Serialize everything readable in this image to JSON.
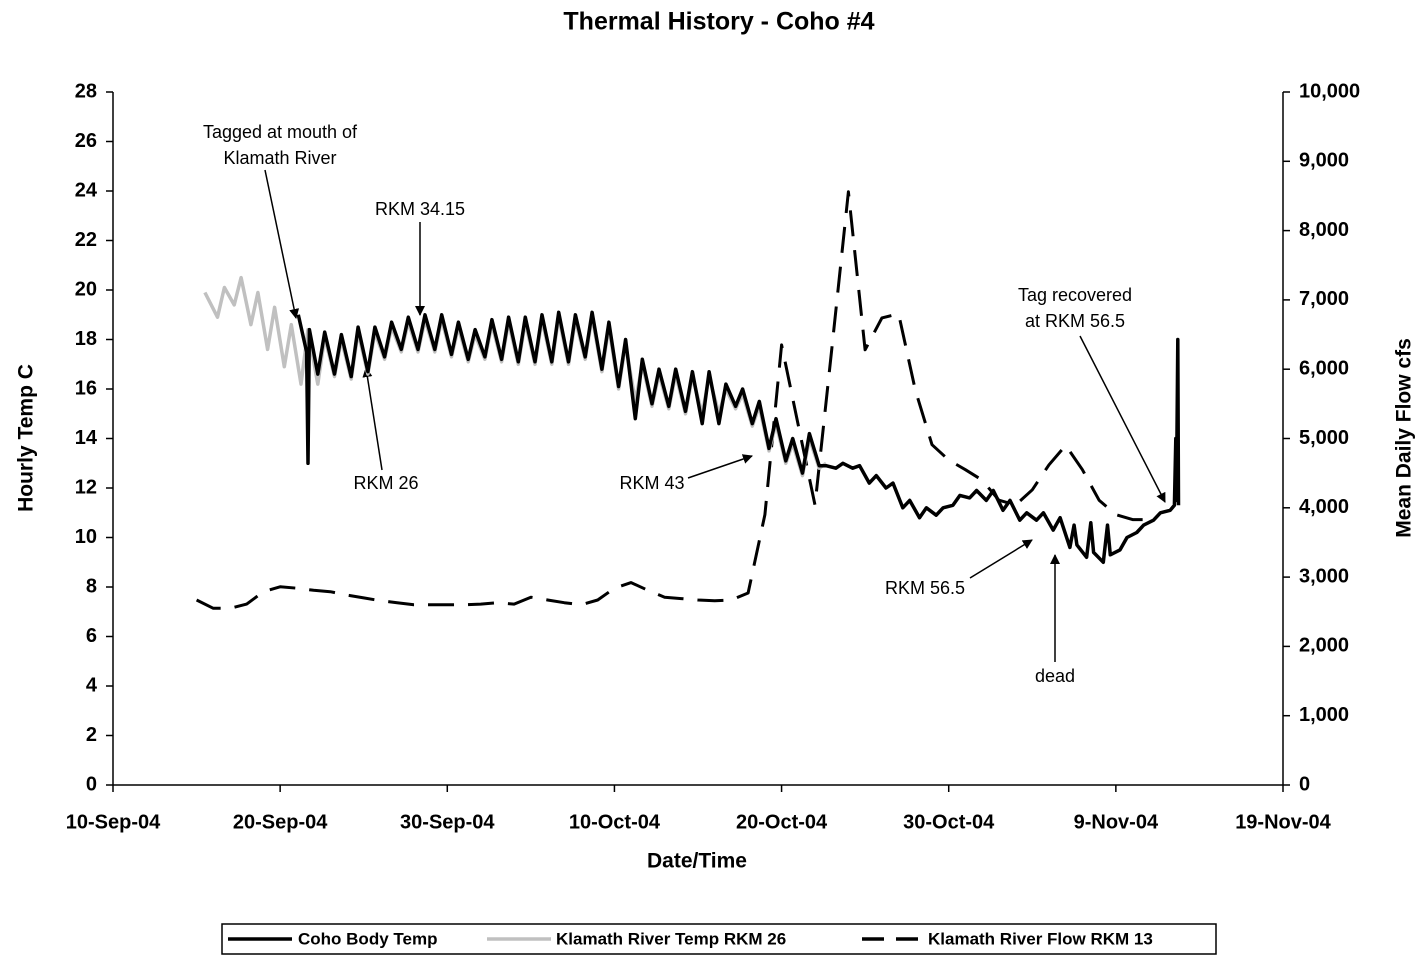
{
  "chart_data": {
    "type": "line",
    "title": "Thermal History - Coho #4",
    "x_label": "Date/Time",
    "y_label": "Hourly Temp C",
    "y2_label": "Mean Daily Flow cfs",
    "xlim": [
      "2004-09-10T00:00",
      "2004-11-19T00:00"
    ],
    "xticks": [
      {
        "value": "2004-09-10T00:00",
        "label": "10-Sep-04"
      },
      {
        "value": "2004-09-20T00:00",
        "label": "20-Sep-04"
      },
      {
        "value": "2004-09-30T00:00",
        "label": "30-Sep-04"
      },
      {
        "value": "2004-10-10T00:00",
        "label": "10-Oct-04"
      },
      {
        "value": "2004-10-20T00:00",
        "label": "20-Oct-04"
      },
      {
        "value": "2004-10-30T00:00",
        "label": "30-Oct-04"
      },
      {
        "value": "2004-11-09T00:00",
        "label": "9-Nov-04"
      },
      {
        "value": "2004-11-19T00:00",
        "label": "19-Nov-04"
      }
    ],
    "ylim": [
      0,
      28
    ],
    "yticks": [
      0,
      2,
      4,
      6,
      8,
      10,
      12,
      14,
      16,
      18,
      20,
      22,
      24,
      26,
      28
    ],
    "y2lim": [
      0,
      10000
    ],
    "y2ticks": [
      0,
      {
        "value": 1000,
        "label": "1,000"
      },
      {
        "value": 2000,
        "label": "2,000"
      },
      {
        "value": 3000,
        "label": "3,000"
      },
      {
        "value": 4000,
        "label": "4,000"
      },
      {
        "value": 5000,
        "label": "5,000"
      },
      {
        "value": 6000,
        "label": "6,000"
      },
      {
        "value": 7000,
        "label": "7,000"
      },
      {
        "value": 8000,
        "label": "8,000"
      },
      {
        "value": 9000,
        "label": "9,000"
      },
      {
        "value": 10000,
        "label": "10,000"
      }
    ],
    "grid": false,
    "legend": "bottom",
    "series": [
      {
        "name": "Coho Body Temp",
        "color": "#000000",
        "style": "solid",
        "x": [
          "2004-09-21T02:00",
          "2004-09-21T14:00",
          "2004-09-21T16:00",
          "2004-09-21T18:00",
          "2004-09-22T06:00",
          "2004-09-22T16:00",
          "2004-09-23T06:00",
          "2004-09-23T16:00",
          "2004-09-24T06:00",
          "2004-09-24T16:00",
          "2004-09-25T06:00",
          "2004-09-25T16:00",
          "2004-09-26T06:00",
          "2004-09-26T16:00",
          "2004-09-27T06:00",
          "2004-09-27T16:00",
          "2004-09-28T06:00",
          "2004-09-28T16:00",
          "2004-09-29T06:00",
          "2004-09-29T16:00",
          "2004-09-30T06:00",
          "2004-09-30T16:00",
          "2004-10-01T06:00",
          "2004-10-01T16:00",
          "2004-10-02T06:00",
          "2004-10-02T16:00",
          "2004-10-03T06:00",
          "2004-10-03T16:00",
          "2004-10-04T06:00",
          "2004-10-04T16:00",
          "2004-10-05T06:00",
          "2004-10-05T16:00",
          "2004-10-06T06:00",
          "2004-10-06T16:00",
          "2004-10-07T06:00",
          "2004-10-07T16:00",
          "2004-10-08T06:00",
          "2004-10-08T16:00",
          "2004-10-09T06:00",
          "2004-10-09T16:00",
          "2004-10-10T06:00",
          "2004-10-10T16:00",
          "2004-10-11T06:00",
          "2004-10-11T16:00",
          "2004-10-12T06:00",
          "2004-10-12T16:00",
          "2004-10-13T06:00",
          "2004-10-13T16:00",
          "2004-10-14T06:00",
          "2004-10-14T16:00",
          "2004-10-15T06:00",
          "2004-10-15T16:00",
          "2004-10-16T06:00",
          "2004-10-16T16:00",
          "2004-10-17T06:00",
          "2004-10-17T16:00",
          "2004-10-18T06:00",
          "2004-10-18T16:00",
          "2004-10-19T06:00",
          "2004-10-19T16:00",
          "2004-10-20T06:00",
          "2004-10-20T16:00",
          "2004-10-21T06:00",
          "2004-10-21T16:00",
          "2004-10-22T06:00",
          "2004-10-22T16:00",
          "2004-10-23T06:00",
          "2004-10-23T16:00",
          "2004-10-24T06:00",
          "2004-10-24T16:00",
          "2004-10-25T06:00",
          "2004-10-25T16:00",
          "2004-10-26T06:00",
          "2004-10-26T16:00",
          "2004-10-27T06:00",
          "2004-10-27T16:00",
          "2004-10-28T06:00",
          "2004-10-28T16:00",
          "2004-10-29T06:00",
          "2004-10-29T16:00",
          "2004-10-30T06:00",
          "2004-10-30T16:00",
          "2004-10-31T06:00",
          "2004-10-31T16:00",
          "2004-11-01T06:00",
          "2004-11-01T16:00",
          "2004-11-02T06:00",
          "2004-11-02T16:00",
          "2004-11-03T06:00",
          "2004-11-03T16:00",
          "2004-11-04T06:00",
          "2004-11-04T16:00",
          "2004-11-05T06:00",
          "2004-11-05T16:00",
          "2004-11-06T06:00",
          "2004-11-06T12:00",
          "2004-11-06T16:00",
          "2004-11-07T06:00",
          "2004-11-07T12:00",
          "2004-11-07T16:00",
          "2004-11-08T06:00",
          "2004-11-08T12:00",
          "2004-11-08T16:00",
          "2004-11-09T06:00",
          "2004-11-09T16:00",
          "2004-11-10T06:00",
          "2004-11-10T16:00",
          "2004-11-11T06:00",
          "2004-11-11T16:00",
          "2004-11-12T06:00",
          "2004-11-12T12:00",
          "2004-11-12T14:00",
          "2004-11-12T15:00",
          "2004-11-12T17:00",
          "2004-11-12T18:00"
        ],
        "values": [
          19.0,
          17.5,
          13.0,
          18.4,
          16.6,
          18.3,
          16.6,
          18.2,
          16.5,
          18.5,
          16.7,
          18.5,
          17.3,
          18.7,
          17.6,
          18.9,
          17.6,
          19.0,
          17.6,
          19.0,
          17.4,
          18.7,
          17.2,
          18.4,
          17.3,
          18.8,
          17.2,
          18.9,
          17.1,
          18.9,
          17.1,
          19.0,
          17.1,
          19.1,
          17.1,
          19.0,
          17.3,
          19.1,
          16.8,
          18.7,
          16.1,
          18.0,
          14.8,
          17.2,
          15.4,
          16.8,
          15.3,
          16.8,
          15.1,
          16.7,
          14.6,
          16.7,
          14.6,
          16.2,
          15.3,
          16.0,
          14.6,
          15.5,
          13.6,
          14.8,
          13.1,
          14.0,
          12.6,
          14.2,
          12.9,
          12.9,
          12.8,
          13.0,
          12.8,
          12.9,
          12.2,
          12.5,
          12.0,
          12.2,
          11.2,
          11.5,
          10.8,
          11.2,
          10.9,
          11.2,
          11.3,
          11.7,
          11.6,
          11.9,
          11.5,
          11.9,
          11.1,
          11.5,
          10.7,
          11.0,
          10.7,
          11.0,
          10.3,
          10.8,
          9.6,
          10.5,
          9.7,
          9.2,
          10.6,
          9.4,
          9.0,
          10.5,
          9.3,
          9.5,
          10.0,
          10.2,
          10.5,
          10.7,
          11.0,
          11.1,
          11.3,
          14.0,
          11.5,
          18.0,
          11.3
        ]
      },
      {
        "name": "Klamath River Temp RKM 26",
        "color": "#c0c0c0",
        "style": "solid",
        "x": [
          "2004-09-15T12:00",
          "2004-09-16T06:00",
          "2004-09-16T16:00",
          "2004-09-17T06:00",
          "2004-09-17T16:00",
          "2004-09-18T06:00",
          "2004-09-18T16:00",
          "2004-09-19T06:00",
          "2004-09-19T16:00",
          "2004-09-20T06:00",
          "2004-09-20T16:00",
          "2004-09-21T06:00",
          "2004-09-21T16:00",
          "2004-09-22T06:00",
          "2004-09-22T16:00",
          "2004-09-23T06:00",
          "2004-09-23T16:00",
          "2004-09-24T06:00",
          "2004-09-24T16:00",
          "2004-09-25T06:00",
          "2004-09-25T16:00",
          "2004-09-26T06:00",
          "2004-09-26T16:00",
          "2004-09-27T06:00",
          "2004-09-27T16:00",
          "2004-09-28T06:00",
          "2004-09-28T16:00",
          "2004-09-29T06:00",
          "2004-09-29T16:00",
          "2004-09-30T06:00",
          "2004-09-30T16:00",
          "2004-10-01T06:00",
          "2004-10-01T16:00",
          "2004-10-02T06:00",
          "2004-10-02T16:00",
          "2004-10-03T06:00",
          "2004-10-03T16:00",
          "2004-10-04T06:00",
          "2004-10-04T16:00",
          "2004-10-05T06:00",
          "2004-10-05T16:00",
          "2004-10-06T06:00",
          "2004-10-06T16:00",
          "2004-10-07T06:00",
          "2004-10-07T16:00",
          "2004-10-08T06:00",
          "2004-10-08T16:00",
          "2004-10-09T06:00",
          "2004-10-09T16:00",
          "2004-10-10T06:00",
          "2004-10-10T16:00",
          "2004-10-11T06:00",
          "2004-10-11T16:00",
          "2004-10-12T06:00",
          "2004-10-12T16:00",
          "2004-10-13T06:00",
          "2004-10-13T16:00",
          "2004-10-14T06:00",
          "2004-10-14T16:00",
          "2004-10-15T06:00",
          "2004-10-15T16:00",
          "2004-10-16T06:00",
          "2004-10-16T16:00",
          "2004-10-17T06:00",
          "2004-10-17T16:00",
          "2004-10-18T06:00",
          "2004-10-18T16:00",
          "2004-10-19T06:00",
          "2004-10-19T16:00",
          "2004-10-20T06:00",
          "2004-10-20T16:00",
          "2004-10-21T06:00",
          "2004-10-21T16:00",
          "2004-10-22T06:00",
          "2004-10-22T16:00"
        ],
        "values": [
          19.9,
          18.9,
          20.1,
          19.4,
          20.5,
          18.6,
          19.9,
          17.6,
          19.3,
          16.9,
          18.6,
          16.2,
          18.4,
          16.2,
          18.1,
          16.5,
          18.0,
          16.4,
          18.3,
          16.6,
          18.3,
          17.2,
          18.5,
          17.5,
          18.7,
          17.5,
          18.8,
          17.5,
          18.8,
          17.3,
          18.5,
          17.1,
          18.2,
          17.2,
          18.6,
          17.1,
          18.7,
          17.0,
          18.7,
          17.0,
          18.8,
          17.0,
          18.9,
          17.0,
          18.8,
          17.2,
          18.9,
          16.7,
          18.5,
          16.0,
          17.8,
          15.5,
          17.0,
          15.3,
          16.6,
          15.2,
          16.6,
          15.0,
          16.5,
          15.0,
          16.5,
          15.0,
          16.0,
          15.2,
          15.8,
          14.5,
          15.3,
          13.5,
          14.6,
          13.0,
          13.8,
          12.5,
          14.0,
          12.8,
          13.0
        ]
      },
      {
        "name": "Klamath River Flow RKM 13",
        "color": "#000000",
        "style": "dashed",
        "axis": "y2",
        "x": [
          "2004-09-15T00:00",
          "2004-09-16T00:00",
          "2004-09-17T00:00",
          "2004-09-18T00:00",
          "2004-09-19T00:00",
          "2004-09-20T00:00",
          "2004-09-21T00:00",
          "2004-09-22T00:00",
          "2004-09-23T00:00",
          "2004-09-24T00:00",
          "2004-09-25T00:00",
          "2004-09-26T00:00",
          "2004-09-27T00:00",
          "2004-09-28T00:00",
          "2004-09-29T00:00",
          "2004-09-30T00:00",
          "2004-10-01T00:00",
          "2004-10-02T00:00",
          "2004-10-03T00:00",
          "2004-10-04T00:00",
          "2004-10-05T00:00",
          "2004-10-06T00:00",
          "2004-10-07T00:00",
          "2004-10-08T00:00",
          "2004-10-09T00:00",
          "2004-10-10T00:00",
          "2004-10-11T00:00",
          "2004-10-12T00:00",
          "2004-10-13T00:00",
          "2004-10-14T00:00",
          "2004-10-15T00:00",
          "2004-10-16T00:00",
          "2004-10-17T00:00",
          "2004-10-18T00:00",
          "2004-10-19T00:00",
          "2004-10-20T00:00",
          "2004-10-21T00:00",
          "2004-10-22T00:00",
          "2004-10-23T00:00",
          "2004-10-24T00:00",
          "2004-10-25T00:00",
          "2004-10-26T00:00",
          "2004-10-27T00:00",
          "2004-10-28T00:00",
          "2004-10-29T00:00",
          "2004-10-30T00:00",
          "2004-10-31T00:00",
          "2004-11-01T00:00",
          "2004-11-02T00:00",
          "2004-11-03T00:00",
          "2004-11-04T00:00",
          "2004-11-05T00:00",
          "2004-11-06T00:00",
          "2004-11-07T00:00",
          "2004-11-08T00:00",
          "2004-11-09T00:00",
          "2004-11-10T00:00",
          "2004-11-11T00:00"
        ],
        "values": [
          2670,
          2550,
          2550,
          2610,
          2790,
          2860,
          2840,
          2810,
          2790,
          2740,
          2700,
          2660,
          2630,
          2600,
          2600,
          2600,
          2600,
          2610,
          2630,
          2610,
          2710,
          2670,
          2630,
          2600,
          2670,
          2840,
          2920,
          2810,
          2710,
          2690,
          2670,
          2660,
          2670,
          2770,
          3900,
          6350,
          5190,
          4040,
          6280,
          8560,
          6280,
          6740,
          6800,
          5700,
          4910,
          4690,
          4550,
          4400,
          4110,
          4040,
          4260,
          4620,
          4900,
          4550,
          4110,
          3900,
          3830,
          3830
        ]
      }
    ],
    "annotations": [
      {
        "text": [
          "Tagged at mouth of",
          "Klamath River"
        ]
      },
      {
        "text": [
          "RKM 34.15"
        ]
      },
      {
        "text": [
          "RKM 26"
        ]
      },
      {
        "text": [
          "RKM 43"
        ]
      },
      {
        "text": [
          "RKM 56.5"
        ]
      },
      {
        "text": [
          "dead"
        ]
      },
      {
        "text": [
          "Tag recovered",
          "at RKM 56.5"
        ]
      }
    ]
  }
}
